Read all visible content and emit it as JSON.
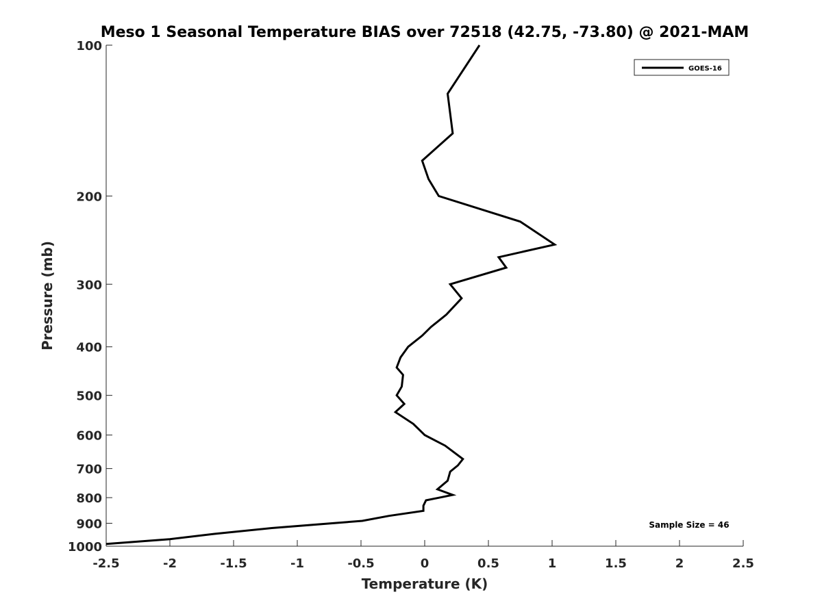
{
  "chart_data": {
    "type": "line",
    "title": "Meso 1 Seasonal Temperature BIAS over 72518 (42.75, -73.80) @ 2021-MAM",
    "xlabel": "Temperature (K)",
    "ylabel": "Pressure (mb)",
    "xlim": [
      -2.5,
      2.5
    ],
    "ylim": [
      100,
      1000
    ],
    "yscale": "log",
    "y_reversed": true,
    "grid": false,
    "x_ticks": [
      -2.5,
      -2,
      -1.5,
      -1,
      -0.5,
      0,
      0.5,
      1,
      1.5,
      2,
      2.5
    ],
    "x_tick_labels": [
      "-2.5",
      "-2",
      "-1.5",
      "-1",
      "-0.5",
      "0",
      "0.5",
      "1",
      "1.5",
      "2",
      "2.5"
    ],
    "y_ticks": [
      100,
      200,
      300,
      400,
      500,
      600,
      700,
      800,
      900,
      1000
    ],
    "y_tick_labels": [
      "100",
      "200",
      "300",
      "400",
      "500",
      "600",
      "700",
      "800",
      "900",
      "1000"
    ],
    "legend_position": "top-right",
    "series": [
      {
        "name": "GOES-16",
        "color": "#000000",
        "points": [
          {
            "x": 0.43,
            "y": 100
          },
          {
            "x": 0.18,
            "y": 125
          },
          {
            "x": 0.22,
            "y": 150
          },
          {
            "x": -0.02,
            "y": 170
          },
          {
            "x": 0.03,
            "y": 185
          },
          {
            "x": 0.11,
            "y": 200
          },
          {
            "x": 0.75,
            "y": 225
          },
          {
            "x": 1.02,
            "y": 250
          },
          {
            "x": 0.58,
            "y": 265
          },
          {
            "x": 0.64,
            "y": 278
          },
          {
            "x": 0.2,
            "y": 300
          },
          {
            "x": 0.29,
            "y": 320
          },
          {
            "x": 0.17,
            "y": 345
          },
          {
            "x": 0.05,
            "y": 365
          },
          {
            "x": -0.02,
            "y": 380
          },
          {
            "x": -0.13,
            "y": 400
          },
          {
            "x": -0.19,
            "y": 420
          },
          {
            "x": -0.22,
            "y": 440
          },
          {
            "x": -0.17,
            "y": 455
          },
          {
            "x": -0.18,
            "y": 480
          },
          {
            "x": -0.22,
            "y": 500
          },
          {
            "x": -0.16,
            "y": 520
          },
          {
            "x": -0.23,
            "y": 540
          },
          {
            "x": -0.09,
            "y": 570
          },
          {
            "x": 0.0,
            "y": 600
          },
          {
            "x": 0.16,
            "y": 630
          },
          {
            "x": 0.3,
            "y": 670
          },
          {
            "x": 0.26,
            "y": 690
          },
          {
            "x": 0.2,
            "y": 710
          },
          {
            "x": 0.18,
            "y": 740
          },
          {
            "x": 0.1,
            "y": 770
          },
          {
            "x": 0.22,
            "y": 790
          },
          {
            "x": 0.01,
            "y": 810
          },
          {
            "x": -0.01,
            "y": 830
          },
          {
            "x": -0.01,
            "y": 850
          },
          {
            "x": -0.28,
            "y": 870
          },
          {
            "x": -0.49,
            "y": 890
          },
          {
            "x": -1.2,
            "y": 920
          },
          {
            "x": -1.65,
            "y": 945
          },
          {
            "x": -2.0,
            "y": 968
          },
          {
            "x": -2.5,
            "y": 990
          }
        ]
      }
    ],
    "annotation": "Sample Size = 46"
  }
}
